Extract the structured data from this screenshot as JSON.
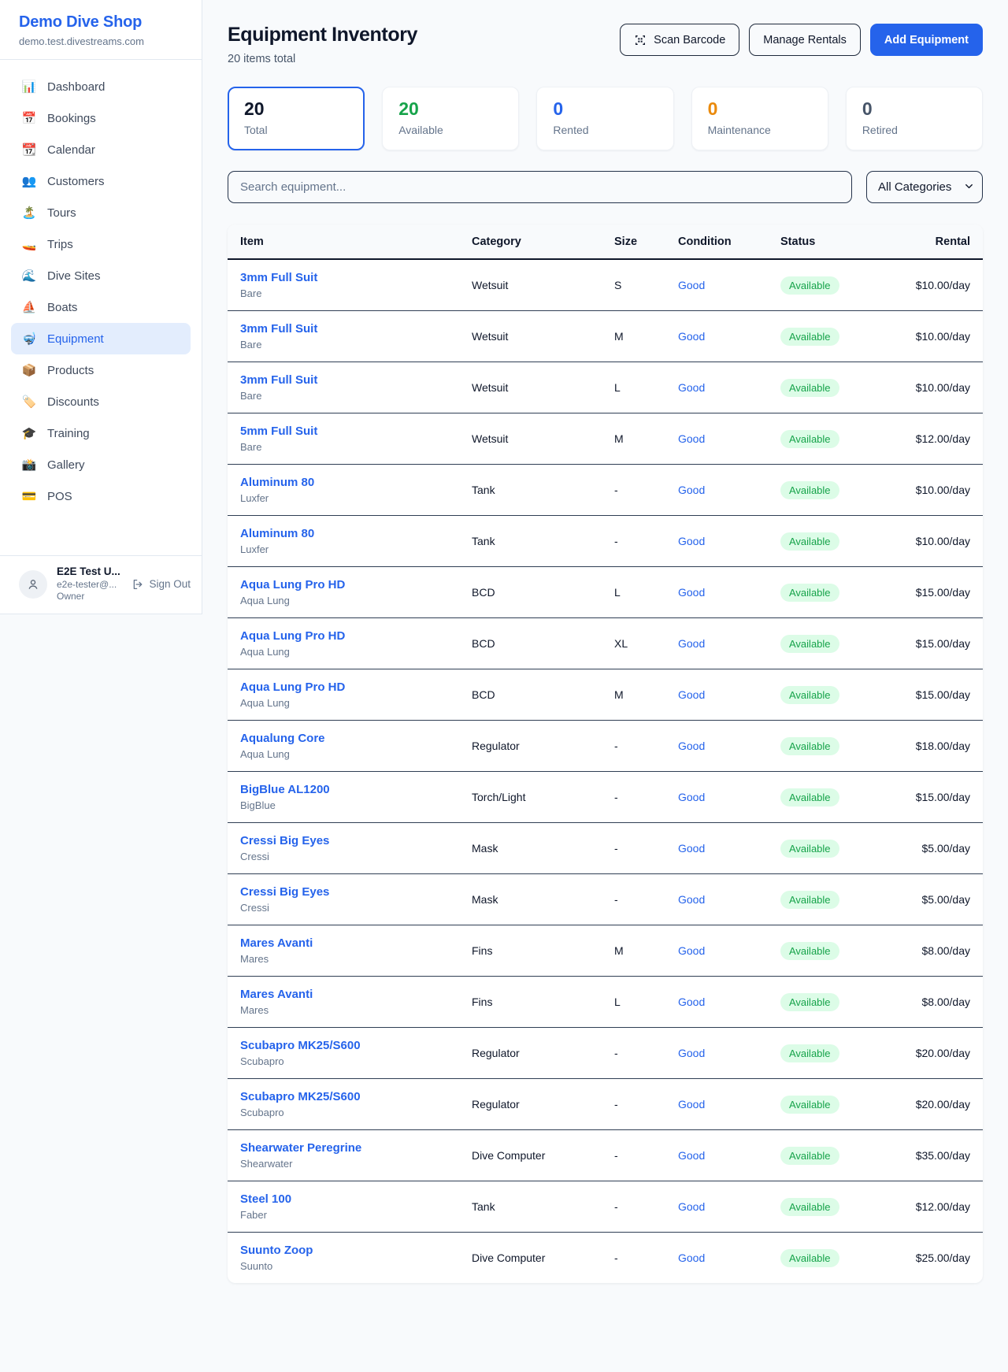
{
  "sidebar": {
    "brand": {
      "name": "Demo Dive Shop",
      "domain": "demo.test.divestreams.com"
    },
    "items": [
      {
        "label": "Dashboard",
        "icon": "📊",
        "icon_name": "bar-chart-icon",
        "active": false
      },
      {
        "label": "Bookings",
        "icon": "📅",
        "icon_name": "calendar-date-icon",
        "active": false
      },
      {
        "label": "Calendar",
        "icon": "📆",
        "icon_name": "tear-off-calendar-icon",
        "active": false
      },
      {
        "label": "Customers",
        "icon": "👥",
        "icon_name": "people-icon",
        "active": false
      },
      {
        "label": "Tours",
        "icon": "🏝️",
        "icon_name": "island-icon",
        "active": false
      },
      {
        "label": "Trips",
        "icon": "🚤",
        "icon_name": "speedboat-icon",
        "active": false
      },
      {
        "label": "Dive Sites",
        "icon": "🌊",
        "icon_name": "wave-icon",
        "active": false
      },
      {
        "label": "Boats",
        "icon": "⛵",
        "icon_name": "sailboat-icon",
        "active": false
      },
      {
        "label": "Equipment",
        "icon": "🤿",
        "icon_name": "diving-mask-icon",
        "active": true
      },
      {
        "label": "Products",
        "icon": "📦",
        "icon_name": "package-icon",
        "active": false
      },
      {
        "label": "Discounts",
        "icon": "🏷️",
        "icon_name": "label-tag-icon",
        "active": false
      },
      {
        "label": "Training",
        "icon": "🎓",
        "icon_name": "graduation-cap-icon",
        "active": false
      },
      {
        "label": "Gallery",
        "icon": "📸",
        "icon_name": "camera-icon",
        "active": false
      },
      {
        "label": "POS",
        "icon": "💳",
        "icon_name": "credit-card-icon",
        "active": false
      }
    ],
    "user": {
      "name": "E2E Test U...",
      "email": "e2e-tester@...",
      "role": "Owner",
      "sign_out_label": "Sign Out"
    }
  },
  "header": {
    "title": "Equipment Inventory",
    "subtitle": "20 items total",
    "scan_barcode_label": "Scan Barcode",
    "manage_rentals_label": "Manage Rentals",
    "add_equipment_label": "Add Equipment"
  },
  "stats": [
    {
      "value": "20",
      "label": "Total",
      "color": "#0f172a",
      "selected": true
    },
    {
      "value": "20",
      "label": "Available",
      "color": "#16a34a",
      "selected": false
    },
    {
      "value": "0",
      "label": "Rented",
      "color": "#2563eb",
      "selected": false
    },
    {
      "value": "0",
      "label": "Maintenance",
      "color": "#ea8a0c",
      "selected": false
    },
    {
      "value": "0",
      "label": "Retired",
      "color": "#475569",
      "selected": false
    }
  ],
  "filters": {
    "search_placeholder": "Search equipment...",
    "category_selected": "All Categories"
  },
  "table": {
    "columns": [
      "Item",
      "Category",
      "Size",
      "Condition",
      "Status",
      "Rental"
    ],
    "rows": [
      {
        "item": "3mm Full Suit",
        "brand": "Bare",
        "category": "Wetsuit",
        "size": "S",
        "condition": "Good",
        "status": "Available",
        "rental": "$10.00/day"
      },
      {
        "item": "3mm Full Suit",
        "brand": "Bare",
        "category": "Wetsuit",
        "size": "M",
        "condition": "Good",
        "status": "Available",
        "rental": "$10.00/day"
      },
      {
        "item": "3mm Full Suit",
        "brand": "Bare",
        "category": "Wetsuit",
        "size": "L",
        "condition": "Good",
        "status": "Available",
        "rental": "$10.00/day"
      },
      {
        "item": "5mm Full Suit",
        "brand": "Bare",
        "category": "Wetsuit",
        "size": "M",
        "condition": "Good",
        "status": "Available",
        "rental": "$12.00/day"
      },
      {
        "item": "Aluminum 80",
        "brand": "Luxfer",
        "category": "Tank",
        "size": "-",
        "condition": "Good",
        "status": "Available",
        "rental": "$10.00/day"
      },
      {
        "item": "Aluminum 80",
        "brand": "Luxfer",
        "category": "Tank",
        "size": "-",
        "condition": "Good",
        "status": "Available",
        "rental": "$10.00/day"
      },
      {
        "item": "Aqua Lung Pro HD",
        "brand": "Aqua Lung",
        "category": "BCD",
        "size": "L",
        "condition": "Good",
        "status": "Available",
        "rental": "$15.00/day"
      },
      {
        "item": "Aqua Lung Pro HD",
        "brand": "Aqua Lung",
        "category": "BCD",
        "size": "XL",
        "condition": "Good",
        "status": "Available",
        "rental": "$15.00/day"
      },
      {
        "item": "Aqua Lung Pro HD",
        "brand": "Aqua Lung",
        "category": "BCD",
        "size": "M",
        "condition": "Good",
        "status": "Available",
        "rental": "$15.00/day"
      },
      {
        "item": "Aqualung Core",
        "brand": "Aqua Lung",
        "category": "Regulator",
        "size": "-",
        "condition": "Good",
        "status": "Available",
        "rental": "$18.00/day"
      },
      {
        "item": "BigBlue AL1200",
        "brand": "BigBlue",
        "category": "Torch/Light",
        "size": "-",
        "condition": "Good",
        "status": "Available",
        "rental": "$15.00/day"
      },
      {
        "item": "Cressi Big Eyes",
        "brand": "Cressi",
        "category": "Mask",
        "size": "-",
        "condition": "Good",
        "status": "Available",
        "rental": "$5.00/day"
      },
      {
        "item": "Cressi Big Eyes",
        "brand": "Cressi",
        "category": "Mask",
        "size": "-",
        "condition": "Good",
        "status": "Available",
        "rental": "$5.00/day"
      },
      {
        "item": "Mares Avanti",
        "brand": "Mares",
        "category": "Fins",
        "size": "M",
        "condition": "Good",
        "status": "Available",
        "rental": "$8.00/day"
      },
      {
        "item": "Mares Avanti",
        "brand": "Mares",
        "category": "Fins",
        "size": "L",
        "condition": "Good",
        "status": "Available",
        "rental": "$8.00/day"
      },
      {
        "item": "Scubapro MK25/S600",
        "brand": "Scubapro",
        "category": "Regulator",
        "size": "-",
        "condition": "Good",
        "status": "Available",
        "rental": "$20.00/day"
      },
      {
        "item": "Scubapro MK25/S600",
        "brand": "Scubapro",
        "category": "Regulator",
        "size": "-",
        "condition": "Good",
        "status": "Available",
        "rental": "$20.00/day"
      },
      {
        "item": "Shearwater Peregrine",
        "brand": "Shearwater",
        "category": "Dive Computer",
        "size": "-",
        "condition": "Good",
        "status": "Available",
        "rental": "$35.00/day"
      },
      {
        "item": "Steel 100",
        "brand": "Faber",
        "category": "Tank",
        "size": "-",
        "condition": "Good",
        "status": "Available",
        "rental": "$12.00/day"
      },
      {
        "item": "Suunto Zoop",
        "brand": "Suunto",
        "category": "Dive Computer",
        "size": "-",
        "condition": "Good",
        "status": "Available",
        "rental": "$25.00/day"
      }
    ]
  }
}
